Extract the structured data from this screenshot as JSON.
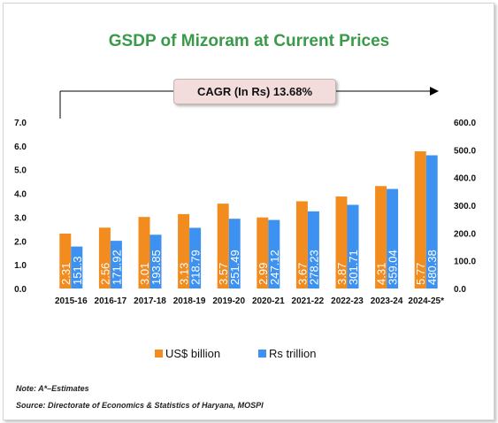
{
  "title": "GSDP of Mizoram at Current Prices",
  "cagr_label": "CAGR (In Rs) 13.68%",
  "note": "Note: A*–Estimates",
  "source": "Source: Directorate of Economics & Statistics of Haryana, MOSPI",
  "colors": {
    "usd": "#F28C1E",
    "inr": "#3D91F0",
    "title": "#3a9a4a"
  },
  "chart_data": {
    "type": "bar",
    "title": "GSDP of Mizoram at Current Prices",
    "categories": [
      "2015-16",
      "2016-17",
      "2017-18",
      "2018-19",
      "2019-20",
      "2020-21",
      "2021-22",
      "2022-23",
      "2023-24",
      "2024-25*"
    ],
    "series": [
      {
        "name": "US$ billion",
        "axis": "left",
        "values": [
          2.31,
          2.56,
          3.01,
          3.13,
          3.57,
          2.99,
          3.67,
          3.87,
          4.31,
          5.77
        ],
        "labels": [
          "2.31",
          "2.56",
          "3.01",
          "3.13",
          "3.57",
          "2.99",
          "3.67",
          "3.87",
          "4.31",
          "5.77"
        ]
      },
      {
        "name": "Rs trillion",
        "axis": "right",
        "values": [
          151.3,
          171.92,
          193.85,
          218.79,
          251.49,
          247.12,
          278.23,
          301.71,
          359.04,
          480.38
        ],
        "labels": [
          "151.3",
          "171.92",
          "193.85",
          "218.79",
          "251.49",
          "247.12",
          "278.23",
          "301.71",
          "359.04",
          "480.38"
        ]
      }
    ],
    "y_left": {
      "lim": [
        0,
        7
      ],
      "ticks": [
        "0.0",
        "1.0",
        "2.0",
        "3.0",
        "4.0",
        "5.0",
        "6.0",
        "7.0"
      ]
    },
    "y_right": {
      "lim": [
        0,
        600
      ],
      "ticks": [
        "0.0",
        "100.0",
        "200.0",
        "300.0",
        "400.0",
        "500.0",
        "600.0"
      ]
    },
    "grid": false,
    "legend": "bottom"
  }
}
